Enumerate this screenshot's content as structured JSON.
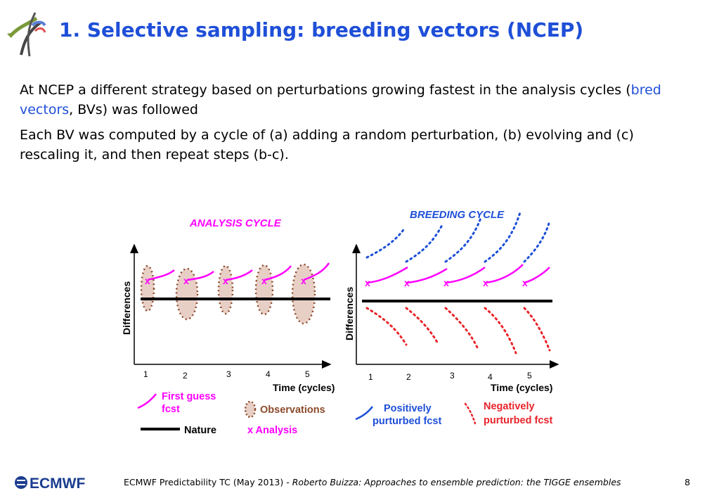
{
  "slide": {
    "title": "1. Selective sampling: breeding vectors (NCEP)",
    "para1_before": "At NCEP a different strategy based on perturbations growing fastest in the analysis cycles (",
    "para1_highlight": "bred vectors",
    "para1_after": ", BVs) was followed",
    "para2": "Each BV was computed by a cycle of (a) adding a random perturbation, (b) evolving and (c) rescaling it, and then repeat steps (b-c)."
  },
  "figure": {
    "left_title": "ANALYSIS CYCLE",
    "right_title": "BREEDING CYCLE",
    "ylabel": "Differences",
    "xlabel": "Time  (cycles)",
    "ticks": [
      "1",
      "2",
      "3",
      "4",
      "5"
    ],
    "analysis_mark": "x",
    "legend": {
      "first_guess_1": "First guess",
      "first_guess_2": "fcst",
      "observations": "Observations",
      "nature": "Nature",
      "analysis": "x  Analysis",
      "positive_1": "Positively",
      "positive_2": "purturbed fcst",
      "negative_1": "Negatively",
      "negative_2": "purturbed fcst"
    },
    "colors": {
      "magenta": "#ff00ff",
      "blue": "#1e4fd8",
      "red": "#e8242a",
      "brown": "#8b4a2b",
      "fill": "#e8cfc6"
    }
  },
  "footer": {
    "org": "ECMWF",
    "left": "ECMWF Predictability TC (May 2013) - ",
    "italic": "Roberto Buizza: Approaches to ensemble prediction: the TIGGE ensembles",
    "page": "8"
  }
}
